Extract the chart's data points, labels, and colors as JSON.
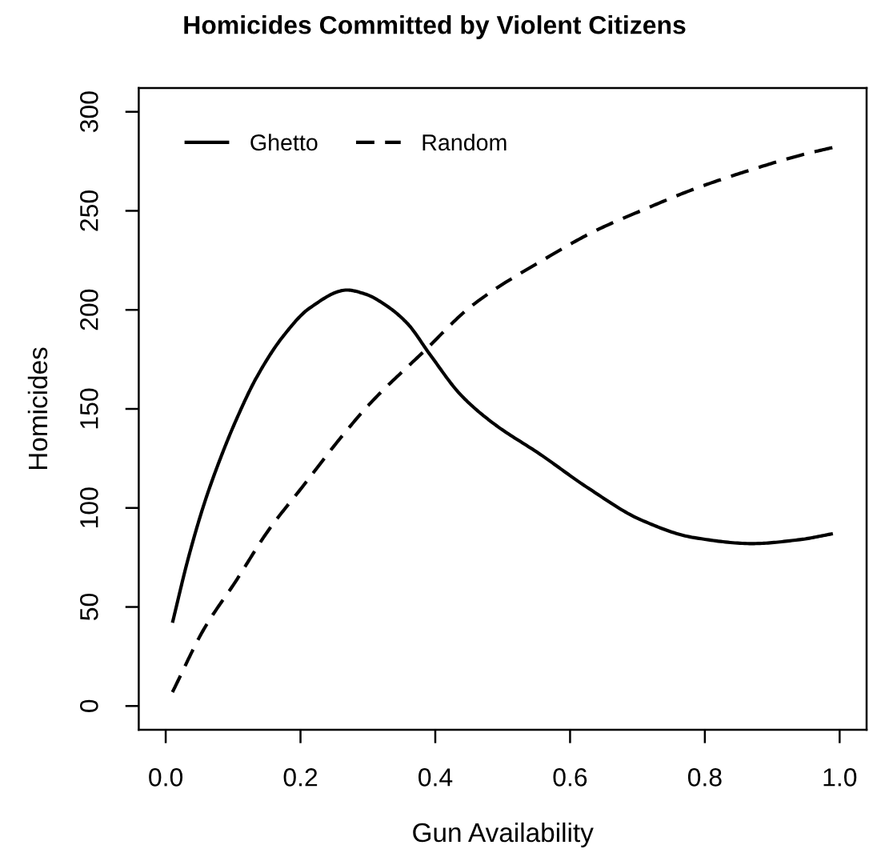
{
  "chart_data": {
    "type": "line",
    "title": "Homicides Committed by Violent Citizens",
    "xlabel": "Gun Availability",
    "ylabel": "Homicides",
    "xlim": [
      -0.04,
      1.04
    ],
    "ylim": [
      -12,
      312
    ],
    "xticks": [
      {
        "value": 0,
        "label": "0.0"
      },
      0.2,
      0.4,
      0.6,
      0.8,
      {
        "value": 1,
        "label": "1.0"
      }
    ],
    "yticks": [
      0,
      50,
      100,
      150,
      200,
      250,
      300
    ],
    "grid": false,
    "legend": "top left",
    "marker": "none",
    "series": [
      {
        "name": "Ghetto",
        "color": "#000000",
        "line_style": "solid",
        "x": [
          0.01,
          0.033,
          0.057,
          0.08,
          0.104,
          0.135,
          0.175,
          0.214,
          0.269,
          0.296,
          0.328,
          0.359,
          0.391,
          0.438,
          0.485,
          0.556,
          0.627,
          0.705,
          0.784,
          0.87,
          0.941,
          0.99
        ],
        "values": [
          42,
          74,
          102,
          124,
          144,
          166,
          187,
          201,
          210,
          208,
          202,
          193,
          178,
          157,
          143,
          127,
          110,
          94,
          85,
          82,
          84,
          87
        ]
      },
      {
        "name": "Random",
        "color": "#000000",
        "line_style": "dashed",
        "x": [
          0.01,
          0.057,
          0.104,
          0.151,
          0.206,
          0.261,
          0.304,
          0.383,
          0.454,
          0.564,
          0.638,
          0.705,
          0.784,
          0.862,
          0.941,
          0.99
        ],
        "values": [
          7,
          39,
          63,
          88,
          112,
          136,
          153,
          179,
          202,
          226,
          240,
          250,
          261,
          270,
          278,
          282
        ]
      }
    ]
  }
}
